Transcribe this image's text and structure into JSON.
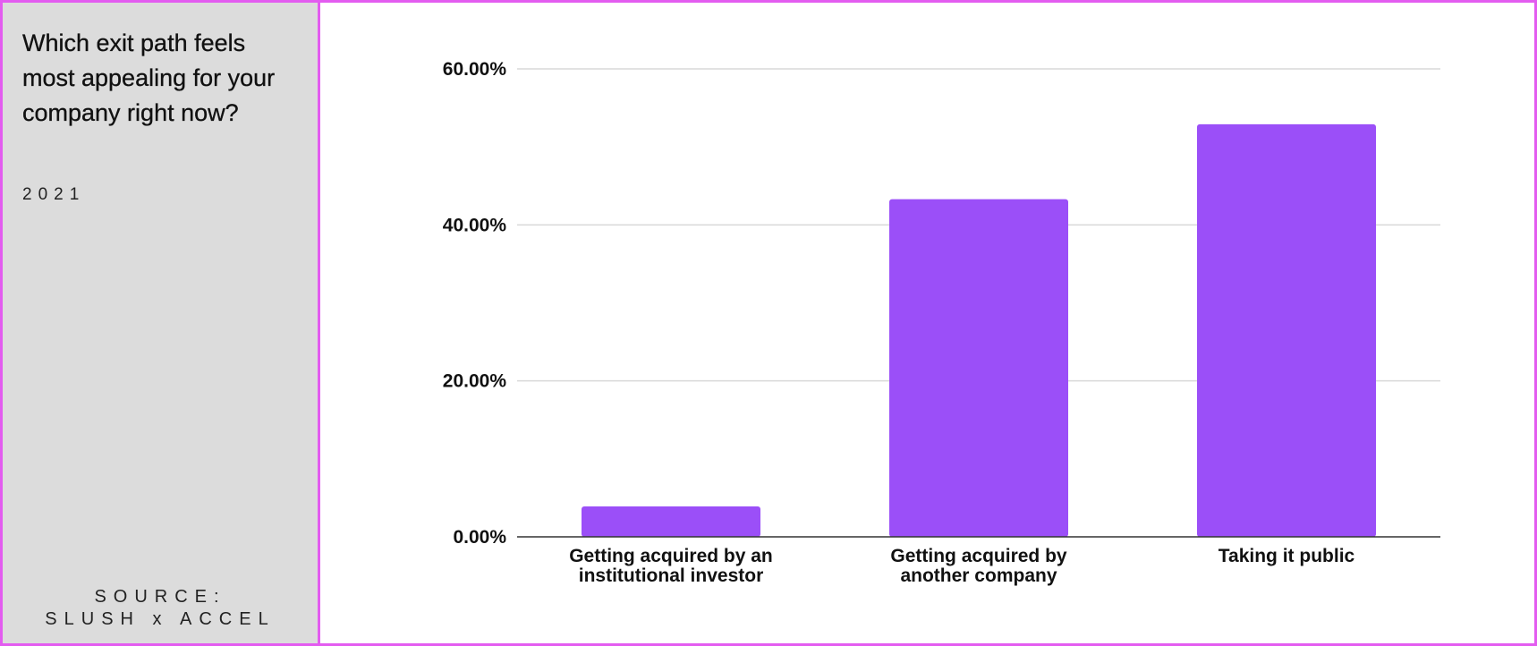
{
  "sidebar": {
    "question": "Which exit path feels most appealing for your company right now?",
    "year": "2021",
    "source_line1": "SOURCE:",
    "source_line2": "SLUSH x ACCEL"
  },
  "colors": {
    "bar": "#9b4ff8",
    "frame": "#e35cf0",
    "sidebar_bg": "#dcdcdc",
    "grid": "#d9d9d9",
    "axis": "#333333"
  },
  "chart_data": {
    "type": "bar",
    "title": "",
    "xlabel": "",
    "ylabel": "",
    "categories": [
      [
        "Getting acquired by an",
        "institutional investor"
      ],
      [
        "Getting acquired by",
        "another company"
      ],
      [
        "Taking it public"
      ]
    ],
    "values": [
      3.9,
      43.3,
      52.9
    ],
    "ylim": [
      0,
      60
    ],
    "yticks": [
      0,
      20,
      40,
      60
    ],
    "ytick_labels": [
      "0.00%",
      "20.00%",
      "40.00%",
      "60.00%"
    ],
    "grid": true
  }
}
